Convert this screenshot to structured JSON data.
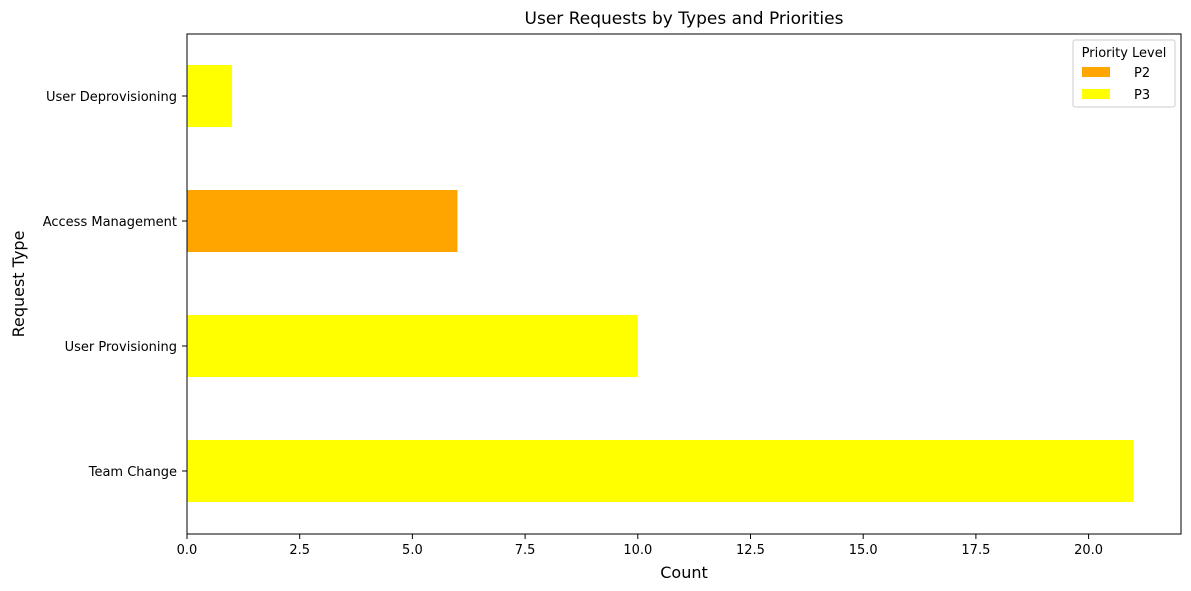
{
  "chart_data": {
    "type": "bar",
    "orientation": "horizontal",
    "stacked": true,
    "title": "User Requests by Types and Priorities",
    "xlabel": "Count",
    "ylabel": "Request Type",
    "categories": [
      "Team Change",
      "User Provisioning",
      "Access Management",
      "User Deprovisioning"
    ],
    "series": [
      {
        "name": "P2",
        "color": "#ffa500",
        "values": [
          0,
          0,
          6,
          0
        ]
      },
      {
        "name": "P3",
        "color": "#ffff00",
        "values": [
          21,
          10,
          0,
          1
        ]
      }
    ],
    "xlim": [
      0,
      22.05
    ],
    "xticks": [
      0.0,
      2.5,
      5.0,
      7.5,
      10.0,
      12.5,
      15.0,
      17.5,
      20.0
    ],
    "xtick_labels": [
      "0.0",
      "2.5",
      "5.0",
      "7.5",
      "10.0",
      "12.5",
      "15.0",
      "17.5",
      "20.0"
    ],
    "legend": {
      "title": "Priority Level",
      "position": "top-right"
    },
    "grid": false
  }
}
